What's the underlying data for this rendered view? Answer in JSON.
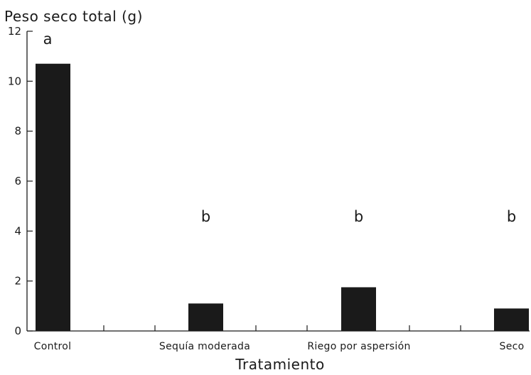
{
  "chart_data": {
    "type": "bar",
    "title": "",
    "ylabel": "Peso seco total (g)",
    "xlabel": "Tratamiento",
    "categories": [
      "Control",
      "Sequía moderada",
      "Riego por aspersión",
      "Seco"
    ],
    "values": [
      10.7,
      1.1,
      1.75,
      0.9
    ],
    "significance_letters": [
      "a",
      "b",
      "b",
      "b"
    ],
    "ylim": [
      0,
      12
    ],
    "yticks": [
      "0",
      "2",
      "4",
      "6",
      "8",
      "10",
      "12"
    ],
    "grid": false,
    "legend": "none",
    "bar_color": "#1a1a1a"
  }
}
